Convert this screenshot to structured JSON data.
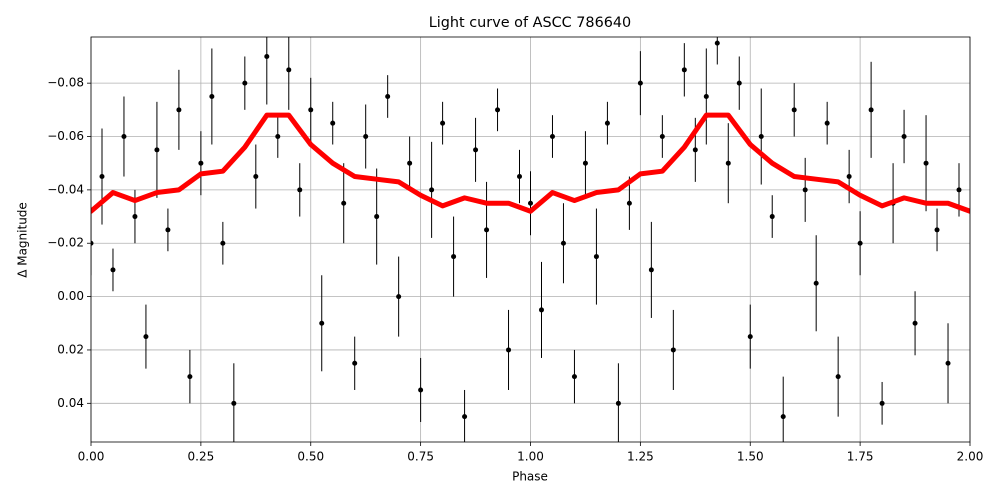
{
  "chart_data": {
    "type": "scatter",
    "title": "Light curve of ASCC 786640",
    "xlabel": "Phase",
    "ylabel": "Δ Magnitude",
    "grid": true,
    "xlim": [
      0,
      2
    ],
    "ylim": [
      0.0545,
      -0.0973
    ],
    "xticks": [
      {
        "value": 0,
        "label": "0.00"
      },
      0.25,
      {
        "value": 0.5,
        "label": "0.50"
      },
      0.75,
      {
        "value": 1,
        "label": "1.00"
      },
      1.25,
      {
        "value": 1.5,
        "label": "1.50"
      },
      1.75,
      {
        "value": 2,
        "label": "2.00"
      }
    ],
    "yticks": [
      {
        "value": -0.08,
        "label": "−0.08"
      },
      {
        "value": -0.06,
        "label": "−0.06"
      },
      {
        "value": -0.04,
        "label": "−0.04"
      },
      {
        "value": -0.02,
        "label": "−0.02"
      },
      {
        "value": 0,
        "label": "0.00"
      },
      0.02,
      0.04
    ],
    "series": [
      {
        "type": "errorbar",
        "color": "#000000",
        "x": [
          0,
          0.025,
          0.05,
          0.075,
          0.1,
          0.125,
          0.15,
          0.175,
          0.2,
          0.225,
          0.25,
          0.275,
          0.3,
          0.325,
          0.35,
          0.375,
          0.4,
          0.425,
          0.45,
          0.475,
          0.5,
          0.525,
          0.55,
          0.575,
          0.6,
          0.625,
          0.65,
          0.675,
          0.7,
          0.725,
          0.75,
          0.775,
          0.8,
          0.825,
          0.85,
          0.875,
          0.9,
          0.925,
          0.95,
          0.975,
          1,
          1.025,
          1.05,
          1.075,
          1.1,
          1.125,
          1.15,
          1.175,
          1.2,
          1.225,
          1.25,
          1.275,
          1.3,
          1.325,
          1.35,
          1.375,
          1.4,
          1.425,
          1.45,
          1.475,
          1.5,
          1.525,
          1.55,
          1.575,
          1.6,
          1.625,
          1.65,
          1.675,
          1.7,
          1.725,
          1.75,
          1.775,
          1.8,
          1.825,
          1.85,
          1.875,
          1.9,
          1.925,
          1.95,
          1.975
        ],
        "values": [
          -0.02,
          -0.045,
          -0.01,
          -0.06,
          -0.03,
          0.015,
          -0.055,
          -0.025,
          -0.07,
          0.03,
          -0.05,
          -0.075,
          -0.02,
          0.04,
          -0.08,
          -0.045,
          -0.09,
          -0.06,
          -0.085,
          -0.04,
          -0.07,
          0.01,
          -0.065,
          -0.035,
          0.025,
          -0.06,
          -0.03,
          -0.075,
          0,
          -0.05,
          0.035,
          -0.04,
          -0.065,
          -0.015,
          0.045,
          -0.055,
          -0.025,
          -0.07,
          0.02,
          -0.045,
          -0.035,
          0.005,
          -0.06,
          -0.02,
          0.03,
          -0.05,
          -0.015,
          -0.065,
          0.04,
          -0.035,
          -0.08,
          -0.01,
          -0.06,
          0.02,
          -0.085,
          -0.055,
          -0.075,
          -0.095,
          -0.05,
          -0.08,
          0.015,
          -0.06,
          -0.03,
          0.045,
          -0.07,
          -0.04,
          -0.005,
          -0.065,
          0.03,
          -0.045,
          -0.02,
          -0.07,
          0.04,
          -0.035,
          -0.06,
          0.01,
          -0.05,
          -0.025,
          0.025,
          -0.04
        ],
        "errors": [
          0.012,
          0.018,
          0.008,
          0.015,
          0.01,
          0.012,
          0.018,
          0.008,
          0.015,
          0.01,
          0.012,
          0.018,
          0.008,
          0.015,
          0.01,
          0.012,
          0.018,
          0.008,
          0.015,
          0.01,
          0.012,
          0.018,
          0.008,
          0.015,
          0.01,
          0.012,
          0.018,
          0.008,
          0.015,
          0.01,
          0.012,
          0.018,
          0.008,
          0.015,
          0.01,
          0.012,
          0.018,
          0.008,
          0.015,
          0.01,
          0.012,
          0.018,
          0.008,
          0.015,
          0.01,
          0.012,
          0.018,
          0.008,
          0.015,
          0.01,
          0.012,
          0.018,
          0.008,
          0.015,
          0.01,
          0.012,
          0.018,
          0.008,
          0.015,
          0.01,
          0.012,
          0.018,
          0.008,
          0.015,
          0.01,
          0.012,
          0.018,
          0.008,
          0.015,
          0.01,
          0.012,
          0.018,
          0.008,
          0.015,
          0.01,
          0.012,
          0.018,
          0.008,
          0.015,
          0.01
        ]
      },
      {
        "type": "line",
        "color": "#ff0000",
        "x": [
          0,
          0.05,
          0.1,
          0.15,
          0.2,
          0.25,
          0.3,
          0.35,
          0.4,
          0.45,
          0.5,
          0.55,
          0.6,
          0.65,
          0.7,
          0.75,
          0.8,
          0.85,
          0.9,
          0.95,
          1,
          1.05,
          1.1,
          1.15,
          1.2,
          1.25,
          1.3,
          1.35,
          1.4,
          1.45,
          1.5,
          1.55,
          1.6,
          1.65,
          1.7,
          1.75,
          1.8,
          1.85,
          1.9,
          1.95,
          2
        ],
        "values": [
          -0.032,
          -0.039,
          -0.036,
          -0.039,
          -0.04,
          -0.046,
          -0.047,
          -0.056,
          -0.068,
          -0.068,
          -0.057,
          -0.05,
          -0.045,
          -0.044,
          -0.043,
          -0.038,
          -0.034,
          -0.037,
          -0.035,
          -0.035,
          -0.032,
          -0.039,
          -0.036,
          -0.039,
          -0.04,
          -0.046,
          -0.047,
          -0.056,
          -0.068,
          -0.068,
          -0.057,
          -0.05,
          -0.045,
          -0.044,
          -0.043,
          -0.038,
          -0.034,
          -0.037,
          -0.035,
          -0.035,
          -0.032
        ]
      }
    ]
  }
}
